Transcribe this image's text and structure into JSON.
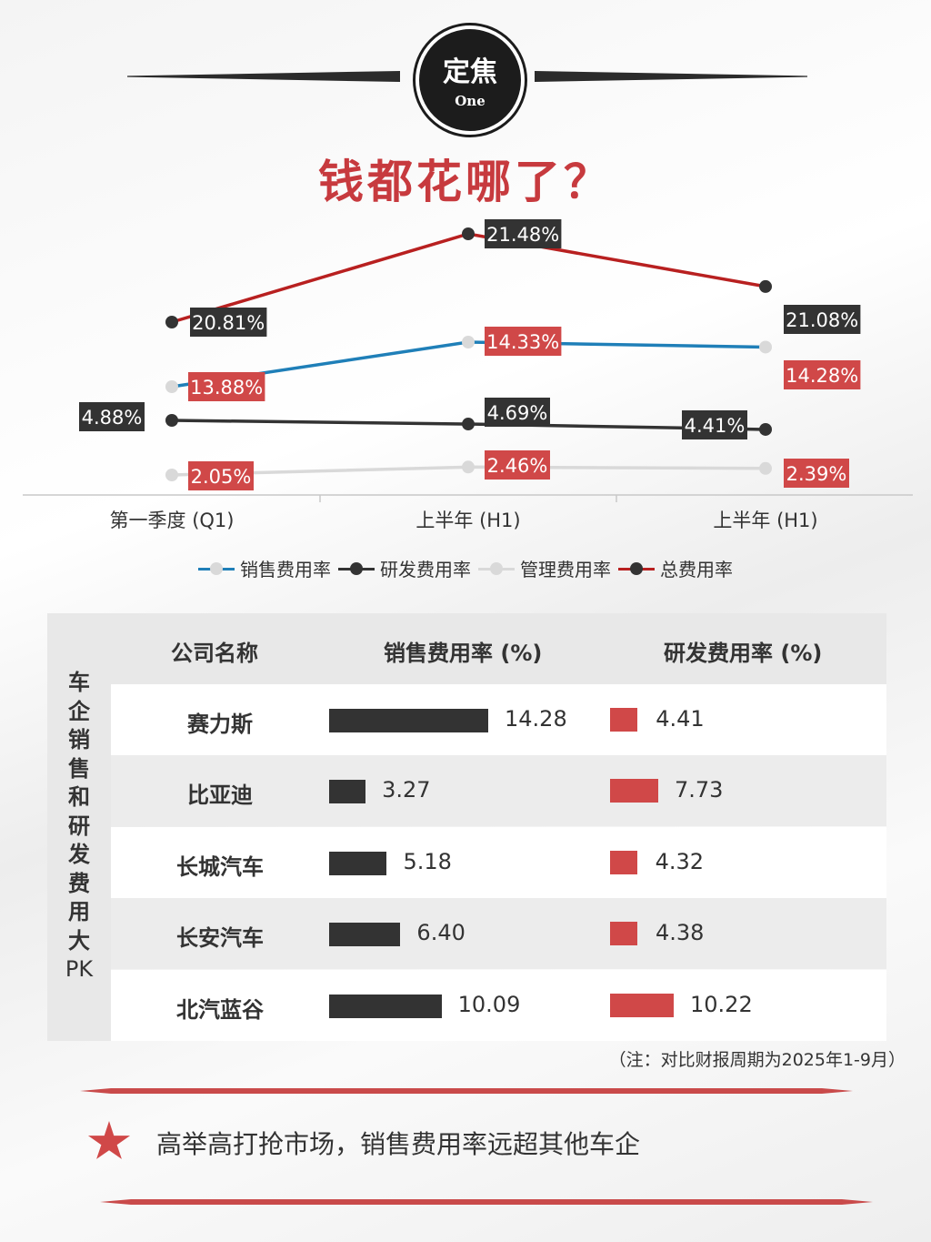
{
  "header": {
    "badge_main": "定焦",
    "badge_sub": "One",
    "title": "钱都花哪了？"
  },
  "chart_data": {
    "type": "line",
    "categories": [
      "第一季度 (Q1)",
      "上半年 (H1)",
      "上半年 (H1)"
    ],
    "series": [
      {
        "name": "销售费用率",
        "values": [
          13.88,
          14.33,
          14.28
        ],
        "labels": [
          "13.88%",
          "14.33%",
          "14.28%"
        ],
        "color": "#1f7fb8",
        "dot": "#d9d9d9",
        "label_bg": "#d04848"
      },
      {
        "name": "研发费用率",
        "values": [
          4.88,
          4.69,
          4.41
        ],
        "labels": [
          "4.88%",
          "4.69%",
          "4.41%"
        ],
        "color": "#333333",
        "dot": "#333333",
        "label_bg": "#333333"
      },
      {
        "name": "管理费用率",
        "values": [
          2.05,
          2.46,
          2.39
        ],
        "labels": [
          "2.05%",
          "2.46%",
          "2.39%"
        ],
        "color": "#d9d9d9",
        "dot": "#d9d9d9",
        "label_bg": "#d04848"
      },
      {
        "name": "总费用率",
        "values": [
          20.81,
          21.48,
          21.08
        ],
        "labels": [
          "20.81%",
          "21.48%",
          "21.08%"
        ],
        "color": "#b82020",
        "dot": "#333333",
        "label_bg": "#333333"
      }
    ],
    "legend_position": "bottom",
    "grid": false
  },
  "table": {
    "side_title": [
      "车",
      "企",
      "销",
      "售",
      "和",
      "研",
      "发",
      "费",
      "用",
      "大",
      "PK"
    ],
    "col_company": "公司名称",
    "col_sales": "销售费用率 (%)",
    "col_rd": "研发费用率 (%)",
    "rows": [
      {
        "company": "赛力斯",
        "sales": 14.28,
        "sales_label": "14.28",
        "rd": 4.41,
        "rd_label": "4.41"
      },
      {
        "company": "比亚迪",
        "sales": 3.27,
        "sales_label": "3.27",
        "rd": 7.73,
        "rd_label": "7.73"
      },
      {
        "company": "长城汽车",
        "sales": 5.18,
        "sales_label": "5.18",
        "rd": 4.32,
        "rd_label": "4.32"
      },
      {
        "company": "长安汽车",
        "sales": 6.4,
        "sales_label": "6.40",
        "rd": 4.38,
        "rd_label": "4.38"
      },
      {
        "company": "北汽蓝谷",
        "sales": 10.09,
        "sales_label": "10.09",
        "rd": 10.22,
        "rd_label": "10.22"
      }
    ]
  },
  "note": "（注：对比财报周期为2025年1-9月）",
  "takeaway": "高举高打抢市场，销售费用率远超其他车企"
}
